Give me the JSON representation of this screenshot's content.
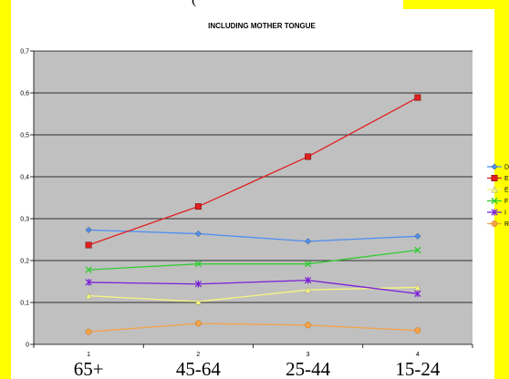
{
  "header_fragment": "(",
  "chart_data": {
    "type": "line",
    "title": "INCLUDING MOTHER TONGUE",
    "xlabel": "",
    "ylabel": "",
    "categories": [
      "1",
      "2",
      "3",
      "4"
    ],
    "category_labels": [
      "65+",
      "45-64",
      "25-44",
      "15-24"
    ],
    "y_ticks": [
      "0",
      "0,1",
      "0,2",
      "0,3",
      "0,4",
      "0,5",
      "0,6",
      "0,7"
    ],
    "ylim": [
      0,
      0.7
    ],
    "grid": true,
    "legend_position": "right",
    "series": [
      {
        "name": "D",
        "color": "#4f8ff0",
        "marker": "diamond",
        "values": [
          0.273,
          0.264,
          0.246,
          0.258
        ]
      },
      {
        "name": "E",
        "color": "#e02020",
        "marker": "square",
        "values": [
          0.237,
          0.329,
          0.448,
          0.589
        ]
      },
      {
        "name": "E",
        "color": "#f5f580",
        "marker": "triangle",
        "values": [
          0.116,
          0.102,
          0.13,
          0.136
        ]
      },
      {
        "name": "F",
        "color": "#33cc33",
        "marker": "x",
        "values": [
          0.178,
          0.192,
          0.192,
          0.225
        ]
      },
      {
        "name": "I",
        "color": "#7a1fd6",
        "marker": "star",
        "values": [
          0.148,
          0.144,
          0.153,
          0.121
        ]
      },
      {
        "name": "R",
        "color": "#f5a24a",
        "marker": "circle",
        "values": [
          0.03,
          0.05,
          0.046,
          0.033
        ]
      }
    ]
  }
}
